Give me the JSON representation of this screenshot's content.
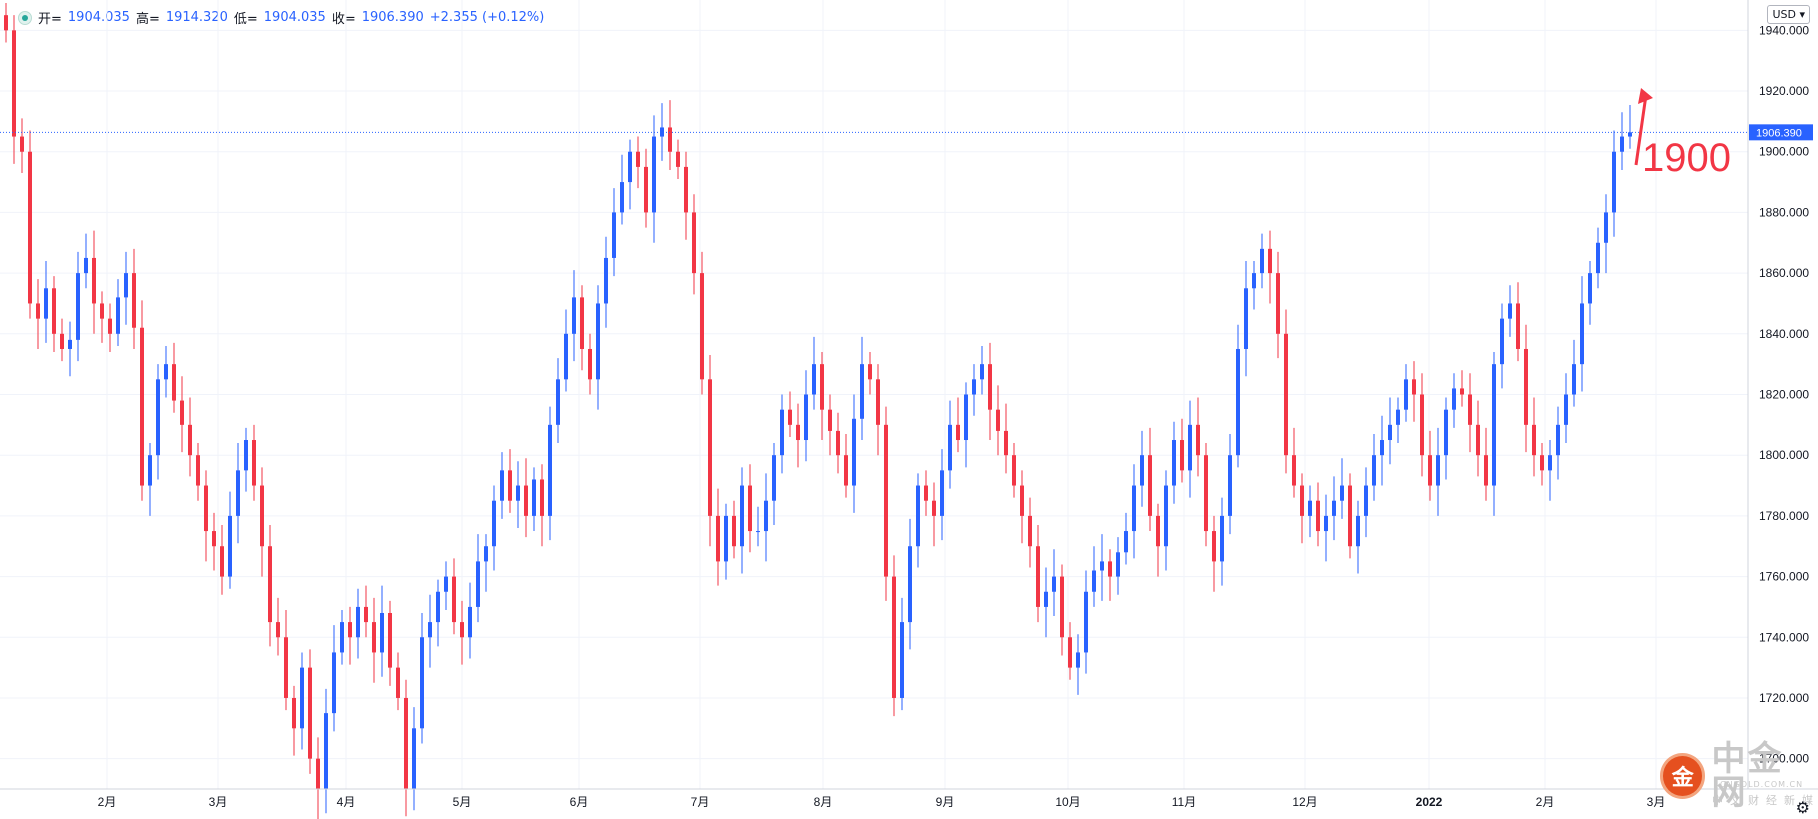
{
  "header": {
    "open_label": "开=",
    "open": "1904.035",
    "high_label": "高=",
    "high": "1914.320",
    "low_label": "低=",
    "low": "1904.035",
    "close_label": "收=",
    "close": "1906.390",
    "change": "+2.355 (+0.12%)"
  },
  "currency_selector": "USD",
  "annotation": {
    "text": "1900",
    "color": "#f23645"
  },
  "watermark": {
    "name": "中金网",
    "url": "CNGOLD.COM.CN",
    "tagline": "中文财经新媒体",
    "logo_char": "金"
  },
  "colors": {
    "up": "#2962ff",
    "down": "#f23645",
    "grid": "#f0f3fa",
    "last_price_bg": "#2962ff"
  },
  "chart_data": {
    "type": "candlestick",
    "y_axis": {
      "min": 1690,
      "max": 1950,
      "ticks": [
        "1940.000",
        "1920.000",
        "1900.000",
        "1880.000",
        "1860.000",
        "1840.000",
        "1820.000",
        "1800.000",
        "1780.000",
        "1760.000",
        "1740.000",
        "1720.000",
        "1700.000"
      ],
      "tick_values": [
        1940,
        1920,
        1900,
        1880,
        1860,
        1840,
        1820,
        1800,
        1780,
        1760,
        1740,
        1720,
        1700
      ]
    },
    "x_axis": {
      "labels": [
        "2月",
        "3月",
        "4月",
        "5月",
        "6月",
        "7月",
        "8月",
        "9月",
        "10月",
        "11月",
        "12月",
        "2022",
        "2月",
        "3月"
      ]
    },
    "last_price": "1906.390",
    "last_price_value": 1906.39,
    "closes": [
      1940,
      1905,
      1900,
      1850,
      1845,
      1855,
      1840,
      1835,
      1838,
      1860,
      1865,
      1850,
      1845,
      1840,
      1852,
      1860,
      1842,
      1790,
      1800,
      1825,
      1830,
      1818,
      1810,
      1800,
      1790,
      1775,
      1770,
      1760,
      1780,
      1795,
      1805,
      1790,
      1770,
      1745,
      1740,
      1720,
      1710,
      1730,
      1700,
      1690,
      1715,
      1735,
      1745,
      1740,
      1750,
      1745,
      1735,
      1748,
      1730,
      1720,
      1690,
      1710,
      1740,
      1745,
      1755,
      1760,
      1745,
      1740,
      1750,
      1765,
      1770,
      1785,
      1795,
      1785,
      1790,
      1780,
      1792,
      1780,
      1810,
      1825,
      1840,
      1852,
      1835,
      1825,
      1850,
      1865,
      1880,
      1890,
      1900,
      1895,
      1880,
      1905,
      1908,
      1900,
      1895,
      1880,
      1860,
      1825,
      1780,
      1765,
      1780,
      1770,
      1790,
      1775,
      1775,
      1785,
      1800,
      1815,
      1810,
      1805,
      1820,
      1830,
      1815,
      1808,
      1800,
      1790,
      1812,
      1830,
      1825,
      1810,
      1760,
      1720,
      1745,
      1770,
      1790,
      1785,
      1780,
      1795,
      1810,
      1805,
      1820,
      1825,
      1830,
      1815,
      1808,
      1800,
      1790,
      1780,
      1770,
      1750,
      1755,
      1760,
      1740,
      1730,
      1735,
      1755,
      1762,
      1765,
      1760,
      1768,
      1775,
      1790,
      1800,
      1780,
      1770,
      1790,
      1805,
      1795,
      1810,
      1800,
      1775,
      1765,
      1780,
      1800,
      1835,
      1855,
      1860,
      1868,
      1860,
      1840,
      1800,
      1790,
      1780,
      1785,
      1775,
      1780,
      1785,
      1790,
      1770,
      1780,
      1790,
      1800,
      1805,
      1810,
      1815,
      1825,
      1820,
      1800,
      1790,
      1800,
      1815,
      1822,
      1820,
      1810,
      1800,
      1790,
      1830,
      1845,
      1850,
      1835,
      1810,
      1800,
      1795,
      1800,
      1810,
      1820,
      1830,
      1850,
      1860,
      1870,
      1880,
      1900,
      1905,
      1906.39
    ]
  }
}
